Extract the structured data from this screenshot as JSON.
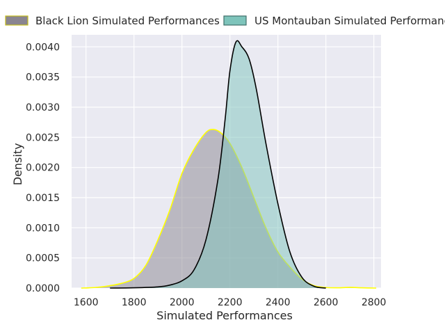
{
  "chart_data": {
    "type": "area",
    "title": "",
    "xlabel": "Simulated Performances",
    "ylabel": "Density",
    "xlim": [
      1540,
      2830
    ],
    "ylim": [
      0,
      0.0042
    ],
    "x_ticks": [
      1600,
      1800,
      2000,
      2200,
      2400,
      2600,
      2800
    ],
    "x_tick_labels": [
      "1600",
      "1800",
      "2000",
      "2200",
      "2400",
      "2600",
      "2800"
    ],
    "y_ticks": [
      0,
      0.0005,
      0.001,
      0.0015,
      0.002,
      0.0025,
      0.003,
      0.0035,
      0.004
    ],
    "y_tick_labels": [
      "0.0000",
      "0.0005",
      "0.0010",
      "0.0015",
      "0.0020",
      "0.0025",
      "0.0030",
      "0.0035",
      "0.0040"
    ],
    "grid": true,
    "legend_position": "top",
    "series": [
      {
        "name": "Black Lion Simulated Performances",
        "fill_color": "#8a8590",
        "line_color": "#ffff00",
        "points": [
          [
            1580,
            0
          ],
          [
            1640,
            1e-05
          ],
          [
            1700,
            4e-05
          ],
          [
            1750,
            8e-05
          ],
          [
            1800,
            0.00016
          ],
          [
            1850,
            0.00038
          ],
          [
            1900,
            0.0008
          ],
          [
            1950,
            0.0013
          ],
          [
            2000,
            0.0019
          ],
          [
            2050,
            0.0023
          ],
          [
            2100,
            0.00258
          ],
          [
            2130,
            0.00263
          ],
          [
            2160,
            0.00258
          ],
          [
            2200,
            0.0024
          ],
          [
            2250,
            0.002
          ],
          [
            2300,
            0.0015
          ],
          [
            2350,
            0.001
          ],
          [
            2400,
            0.0006
          ],
          [
            2450,
            0.00035
          ],
          [
            2500,
            0.00015
          ],
          [
            2550,
            4e-05
          ],
          [
            2600,
            1e-05
          ],
          [
            2650,
            5e-06
          ],
          [
            2700,
            1.2e-05
          ],
          [
            2750,
            5e-06
          ],
          [
            2810,
            0
          ]
        ]
      },
      {
        "name": "US Montauban Simulated Performances",
        "fill_color": "#7ec4bb",
        "line_color": "#000000",
        "points": [
          [
            1700,
            0
          ],
          [
            1800,
            5e-06
          ],
          [
            1900,
            2e-05
          ],
          [
            1950,
            5e-05
          ],
          [
            2000,
            0.00012
          ],
          [
            2050,
            0.0003
          ],
          [
            2100,
            0.0008
          ],
          [
            2150,
            0.0018
          ],
          [
            2180,
            0.0028
          ],
          [
            2200,
            0.0036
          ],
          [
            2225,
            0.00408
          ],
          [
            2250,
            0.004
          ],
          [
            2280,
            0.0038
          ],
          [
            2310,
            0.0033
          ],
          [
            2350,
            0.0024
          ],
          [
            2400,
            0.0014
          ],
          [
            2450,
            0.0006
          ],
          [
            2500,
            0.00018
          ],
          [
            2550,
            3e-05
          ],
          [
            2600,
            0
          ]
        ]
      }
    ]
  }
}
